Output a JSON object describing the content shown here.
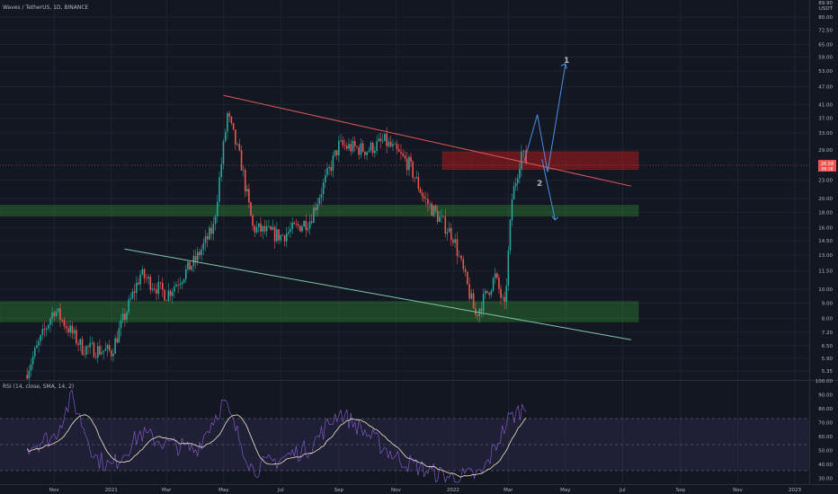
{
  "header": {
    "symbol_line": "Waves / TetherUS, 1D, BINANCE"
  },
  "price_axis": {
    "currency": "USDT",
    "top_partial": "89.90",
    "ticks": [
      "80.00",
      "72.50",
      "65.00",
      "59.00",
      "53.00",
      "47.00",
      "41.00",
      "37.00",
      "33.00",
      "29.00",
      "23.00",
      "20.00",
      "18.00",
      "16.00",
      "14.50",
      "13.00",
      "11.50",
      "10.00",
      "9.00",
      "8.00",
      "7.20",
      "6.50",
      "5.90",
      "5.35"
    ],
    "last_price": "26.58",
    "last_price_sub": "06:38"
  },
  "rsi_axis": {
    "ticks": [
      "100.00",
      "90.00",
      "80.00",
      "70.00",
      "60.00",
      "50.00",
      "40.00",
      "30.00"
    ]
  },
  "rsi_label": "RSI (14, close, SMA, 14, 2)",
  "time_axis": [
    "Nov",
    "2021",
    "Mar",
    "May",
    "Jul",
    "Sep",
    "Nov",
    "2022",
    "Mar",
    "May",
    "Jul",
    "Sep",
    "Nov",
    "2023"
  ],
  "annotations": {
    "wave_1": "1",
    "wave_2": "2"
  },
  "colors": {
    "background": "#131722",
    "bull_candle": "#26a69a",
    "bear_candle": "#ef5350",
    "resistance_line": "#e05a5a",
    "support_line": "#7fc8a9",
    "projection_arrow": "#4a90e2",
    "zone_green": "#2e7d32",
    "zone_red": "#b71c1c",
    "rsi_line": "#7e57c2",
    "rsi_sma": "#f0e6c8"
  },
  "chart_data": [
    {
      "type": "candlestick",
      "title": "Waves / TetherUS, 1D, BINANCE",
      "y_scale": "log",
      "ylim": [
        5.0,
        90.0
      ],
      "x_range": [
        "2020-10",
        "2023-01"
      ],
      "series": [
        {
          "values": [
            [
              "2020-10-01",
              5.2
            ],
            [
              "2020-11-01",
              8.6
            ],
            [
              "2020-12-01",
              6.4
            ],
            [
              "2021-01-01",
              6.2
            ],
            [
              "2021-02-01",
              11.2
            ],
            [
              "2021-03-01",
              9.6
            ],
            [
              "2021-04-01",
              12.5
            ],
            [
              "2021-04-20",
              16.0
            ],
            [
              "2021-05-05",
              38.0
            ],
            [
              "2021-05-20",
              26.0
            ],
            [
              "2021-06-01",
              16.0
            ],
            [
              "2021-07-01",
              15.0
            ],
            [
              "2021-08-01",
              17.0
            ],
            [
              "2021-09-01",
              30.0
            ],
            [
              "2021-10-01",
              29.0
            ],
            [
              "2021-10-20",
              31.0
            ],
            [
              "2021-11-15",
              26.0
            ],
            [
              "2021-12-01",
              20.0
            ],
            [
              "2022-01-01",
              15.0
            ],
            [
              "2022-01-25",
              8.2
            ],
            [
              "2022-02-15",
              11.0
            ],
            [
              "2022-02-25",
              8.6
            ],
            [
              "2022-03-05",
              20.0
            ],
            [
              "2022-03-15",
              28.5
            ],
            [
              "2022-03-20",
              26.58
            ]
          ]
        }
      ],
      "zones": [
        {
          "type": "support",
          "color": "green",
          "from": 17.5,
          "to": 19.0
        },
        {
          "type": "support",
          "color": "green",
          "from": 7.8,
          "to": 9.1
        },
        {
          "type": "resistance",
          "color": "red",
          "from": 25.0,
          "to": 28.6
        }
      ],
      "trendlines": [
        {
          "name": "resistance",
          "start": [
            "2021-05-01",
            44.0
          ],
          "end": [
            "2022-07-10",
            22.0
          ]
        },
        {
          "name": "support",
          "start": [
            "2021-01-15",
            13.6
          ],
          "end": [
            "2022-07-10",
            6.8
          ]
        }
      ],
      "projection_path": [
        [
          "2022-03-18",
          26.6
        ],
        [
          "2022-04-01",
          38.0
        ],
        [
          "2022-04-12",
          24.5
        ],
        [
          "2022-05-01",
          56.0
        ]
      ],
      "projection_path_alt": [
        [
          "2022-04-06",
          27.0
        ],
        [
          "2022-04-20",
          17.0
        ]
      ]
    },
    {
      "type": "line",
      "title": "RSI (14, close, SMA, 14, 2)",
      "ylim": [
        25,
        100
      ],
      "bands": [
        30,
        50,
        70
      ],
      "series": [
        {
          "values": [
            [
              "2020-10-01",
              52
            ],
            [
              "2020-11-01",
              60
            ],
            [
              "2020-11-20",
              88
            ],
            [
              "2020-12-15",
              45
            ],
            [
              "2021-01-01",
              38
            ],
            [
              "2021-02-01",
              62
            ],
            [
              "2021-03-01",
              55
            ],
            [
              "2021-04-01",
              50
            ],
            [
              "2021-05-01",
              85
            ],
            [
              "2021-06-01",
              36
            ],
            [
              "2021-07-01",
              44
            ],
            [
              "2021-08-01",
              52
            ],
            [
              "2021-09-01",
              78
            ],
            [
              "2021-10-01",
              62
            ],
            [
              "2021-11-01",
              45
            ],
            [
              "2021-12-01",
              36
            ],
            [
              "2022-01-01",
              30
            ],
            [
              "2022-02-01",
              33
            ],
            [
              "2022-03-01",
              72
            ],
            [
              "2022-03-20",
              82
            ]
          ]
        }
      ]
    }
  ]
}
